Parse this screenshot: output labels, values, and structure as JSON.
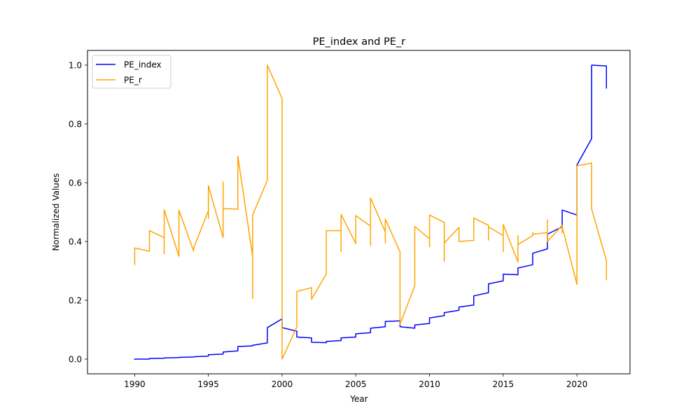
{
  "chart_data": {
    "type": "line",
    "title": "PE_index and PE_r",
    "xlabel": "Year",
    "ylabel": "Normalized Values",
    "xlim": [
      1986.8,
      2023.6
    ],
    "ylim": [
      -0.05,
      1.05
    ],
    "xticks": [
      1990,
      1995,
      2000,
      2005,
      2010,
      2015,
      2020
    ],
    "yticks": [
      0.0,
      0.2,
      0.4,
      0.6,
      0.8,
      1.0
    ],
    "xtick_labels": [
      "1990",
      "1995",
      "2000",
      "2005",
      "2010",
      "2015",
      "2020"
    ],
    "ytick_labels": [
      "0.0",
      "0.2",
      "0.4",
      "0.6",
      "0.8",
      "1.0"
    ],
    "grid": false,
    "legend_position": "top-left",
    "series": [
      {
        "name": "PE_index",
        "color": "#0000ff",
        "x": [
          1990,
          1991,
          1991,
          1992,
          1992,
          1993,
          1993,
          1994,
          1994,
          1995,
          1995,
          1996,
          1996,
          1997,
          1997,
          1998,
          1998,
          1999,
          1999,
          2000,
          2000,
          2001,
          2001,
          2002,
          2002,
          2003,
          2003,
          2004,
          2004,
          2005,
          2005,
          2006,
          2006,
          2007,
          2007,
          2008,
          2008,
          2009,
          2009,
          2010,
          2010,
          2011,
          2011,
          2012,
          2012,
          2013,
          2013,
          2014,
          2014,
          2015,
          2015,
          2016,
          2016,
          2017,
          2017,
          2018,
          2018,
          2019,
          2019,
          2020,
          2020,
          2021,
          2021,
          2022,
          2022
        ],
        "y": [
          0.0,
          0.0,
          0.002,
          0.003,
          0.004,
          0.005,
          0.006,
          0.007,
          0.008,
          0.01,
          0.015,
          0.017,
          0.024,
          0.028,
          0.043,
          0.045,
          0.047,
          0.055,
          0.107,
          0.137,
          0.107,
          0.095,
          0.075,
          0.072,
          0.057,
          0.056,
          0.06,
          0.063,
          0.072,
          0.075,
          0.086,
          0.09,
          0.105,
          0.11,
          0.128,
          0.13,
          0.11,
          0.105,
          0.116,
          0.121,
          0.14,
          0.148,
          0.158,
          0.166,
          0.177,
          0.184,
          0.215,
          0.226,
          0.256,
          0.266,
          0.289,
          0.287,
          0.31,
          0.321,
          0.36,
          0.375,
          0.425,
          0.45,
          0.507,
          0.49,
          0.66,
          0.75,
          1.0,
          0.997,
          0.922
        ]
      },
      {
        "name": "PE_r",
        "color": "#ffa500",
        "x": [
          1990,
          1990,
          1991,
          1991,
          1992,
          1992,
          1992,
          1993,
          1993,
          1994,
          1994,
          1995,
          1995,
          1995,
          1996,
          1996,
          1996,
          1997,
          1997,
          1998,
          1998,
          1998,
          1999,
          1999,
          2000,
          2000,
          2001,
          2001,
          2001,
          2002,
          2002,
          2003,
          2003,
          2004,
          2004,
          2004,
          2005,
          2005,
          2006,
          2006,
          2006,
          2007,
          2007,
          2007,
          2008,
          2008,
          2008,
          2009,
          2009,
          2010,
          2010,
          2010,
          2011,
          2011,
          2011,
          2012,
          2012,
          2013,
          2013,
          2014,
          2014,
          2014,
          2015,
          2015,
          2015,
          2016,
          2016,
          2016,
          2017,
          2017,
          2017,
          2018,
          2018,
          2018,
          2019,
          2019,
          2019,
          2020,
          2020,
          2021,
          2021,
          2022,
          2022
        ],
        "y": [
          0.322,
          0.378,
          0.367,
          0.437,
          0.413,
          0.358,
          0.508,
          0.35,
          0.507,
          0.367,
          0.377,
          0.505,
          0.478,
          0.59,
          0.413,
          0.603,
          0.512,
          0.51,
          0.69,
          0.35,
          0.206,
          0.49,
          0.608,
          1.0,
          0.886,
          0.0,
          0.11,
          0.115,
          0.23,
          0.243,
          0.204,
          0.29,
          0.437,
          0.437,
          0.365,
          0.492,
          0.393,
          0.488,
          0.452,
          0.387,
          0.548,
          0.433,
          0.395,
          0.476,
          0.365,
          0.35,
          0.118,
          0.25,
          0.451,
          0.409,
          0.382,
          0.49,
          0.465,
          0.333,
          0.395,
          0.448,
          0.4,
          0.404,
          0.48,
          0.455,
          0.405,
          0.45,
          0.42,
          0.365,
          0.458,
          0.33,
          0.42,
          0.39,
          0.42,
          0.43,
          0.425,
          0.43,
          0.474,
          0.4,
          0.455,
          0.43,
          0.45,
          0.254,
          0.657,
          0.667,
          0.51,
          0.335,
          0.27
        ]
      }
    ]
  }
}
